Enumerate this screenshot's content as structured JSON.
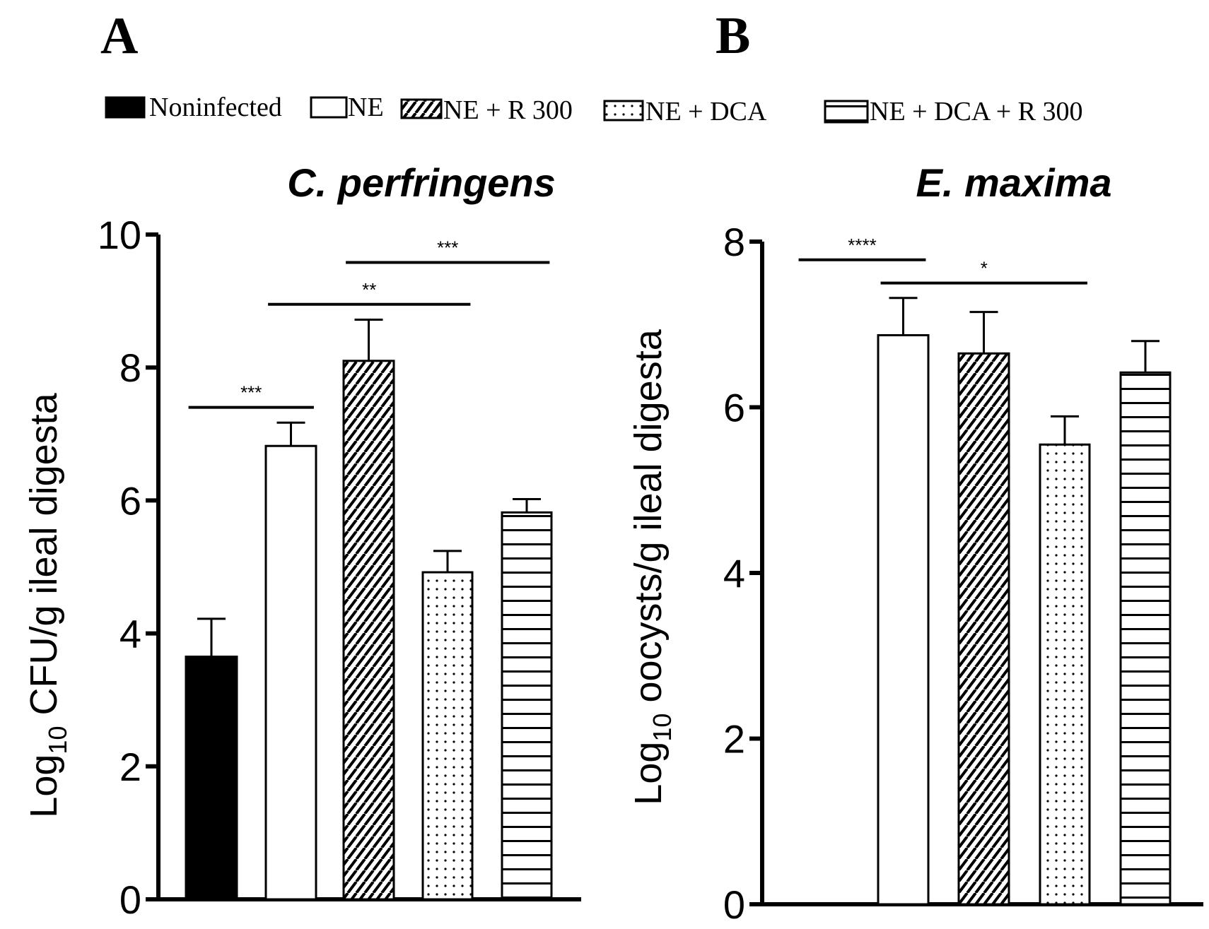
{
  "panels": {
    "a": {
      "letter": "A"
    },
    "b": {
      "letter": "B"
    }
  },
  "legend": {
    "items": [
      {
        "label": "Noninfected",
        "pattern": "solid"
      },
      {
        "label": "NE",
        "pattern": "empty"
      },
      {
        "label": "NE + R 300",
        "pattern": "diagonal"
      },
      {
        "label": "NE + DCA",
        "pattern": "dots"
      },
      {
        "label": "NE + DCA + R 300",
        "pattern": "horizontal"
      }
    ]
  },
  "chart_data": [
    {
      "type": "bar",
      "panel": "A",
      "title": "C. perfringens",
      "ylabel_main": "Log",
      "ylabel_sub": "10",
      "ylabel_rest": " CFU/g ileal digesta",
      "ylim": [
        0,
        10
      ],
      "yticks": [
        "0",
        "2",
        "4",
        "6",
        "8",
        "10"
      ],
      "categories": [
        "Noninfected",
        "NE",
        "NE + R 300",
        "NE + DCA",
        "NE + DCA + R 300"
      ],
      "values": [
        3.65,
        6.82,
        8.1,
        4.92,
        5.82
      ],
      "errors": [
        0.57,
        0.35,
        0.62,
        0.32,
        0.2
      ],
      "significance": [
        {
          "from": 0,
          "to": 1,
          "y": 7.4,
          "label": "***"
        },
        {
          "from": 1,
          "to": 3,
          "y": 8.95,
          "label": "**"
        },
        {
          "from": 2,
          "to": 4,
          "y": 9.58,
          "label": "***"
        }
      ]
    },
    {
      "type": "bar",
      "panel": "B",
      "title": "E. maxima",
      "ylabel_main": "Log",
      "ylabel_sub": "10",
      "ylabel_rest": " oocysts/g ileal digesta",
      "ylim": [
        0,
        8
      ],
      "yticks": [
        "0",
        "2",
        "4",
        "6",
        "8"
      ],
      "categories": [
        "Noninfected",
        "NE",
        "NE + R 300",
        "NE + DCA",
        "NE + DCA + R 300"
      ],
      "values": [
        0,
        6.87,
        6.65,
        5.55,
        6.42
      ],
      "errors": [
        0,
        0.45,
        0.5,
        0.34,
        0.38
      ],
      "significance": [
        {
          "from": 0,
          "to": 1,
          "y": 7.78,
          "label": "****"
        },
        {
          "from": 1,
          "to": 3,
          "y": 7.5,
          "label": "*"
        }
      ]
    }
  ]
}
